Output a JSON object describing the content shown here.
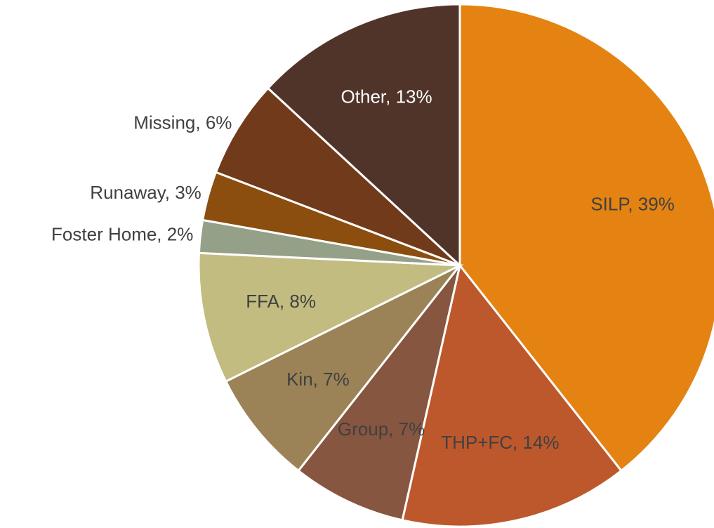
{
  "chart_data": {
    "type": "pie",
    "value_labels": [
      "SILP, 39%",
      "THP+FC, 14%",
      "Group, 7%",
      "Kin, 7%",
      "FFA, 8%",
      "Foster Home, 2%",
      "Runaway, 3%",
      "Missing, 6%",
      "Other, 13%"
    ],
    "values": [
      39,
      14,
      7,
      7,
      8,
      2,
      3,
      6,
      13
    ],
    "colors": [
      "#E48312",
      "#BD582C",
      "#865640",
      "#9B8357",
      "#C2BC80",
      "#94A088",
      "#8B4E0E",
      "#713A1A",
      "#50342A"
    ]
  }
}
